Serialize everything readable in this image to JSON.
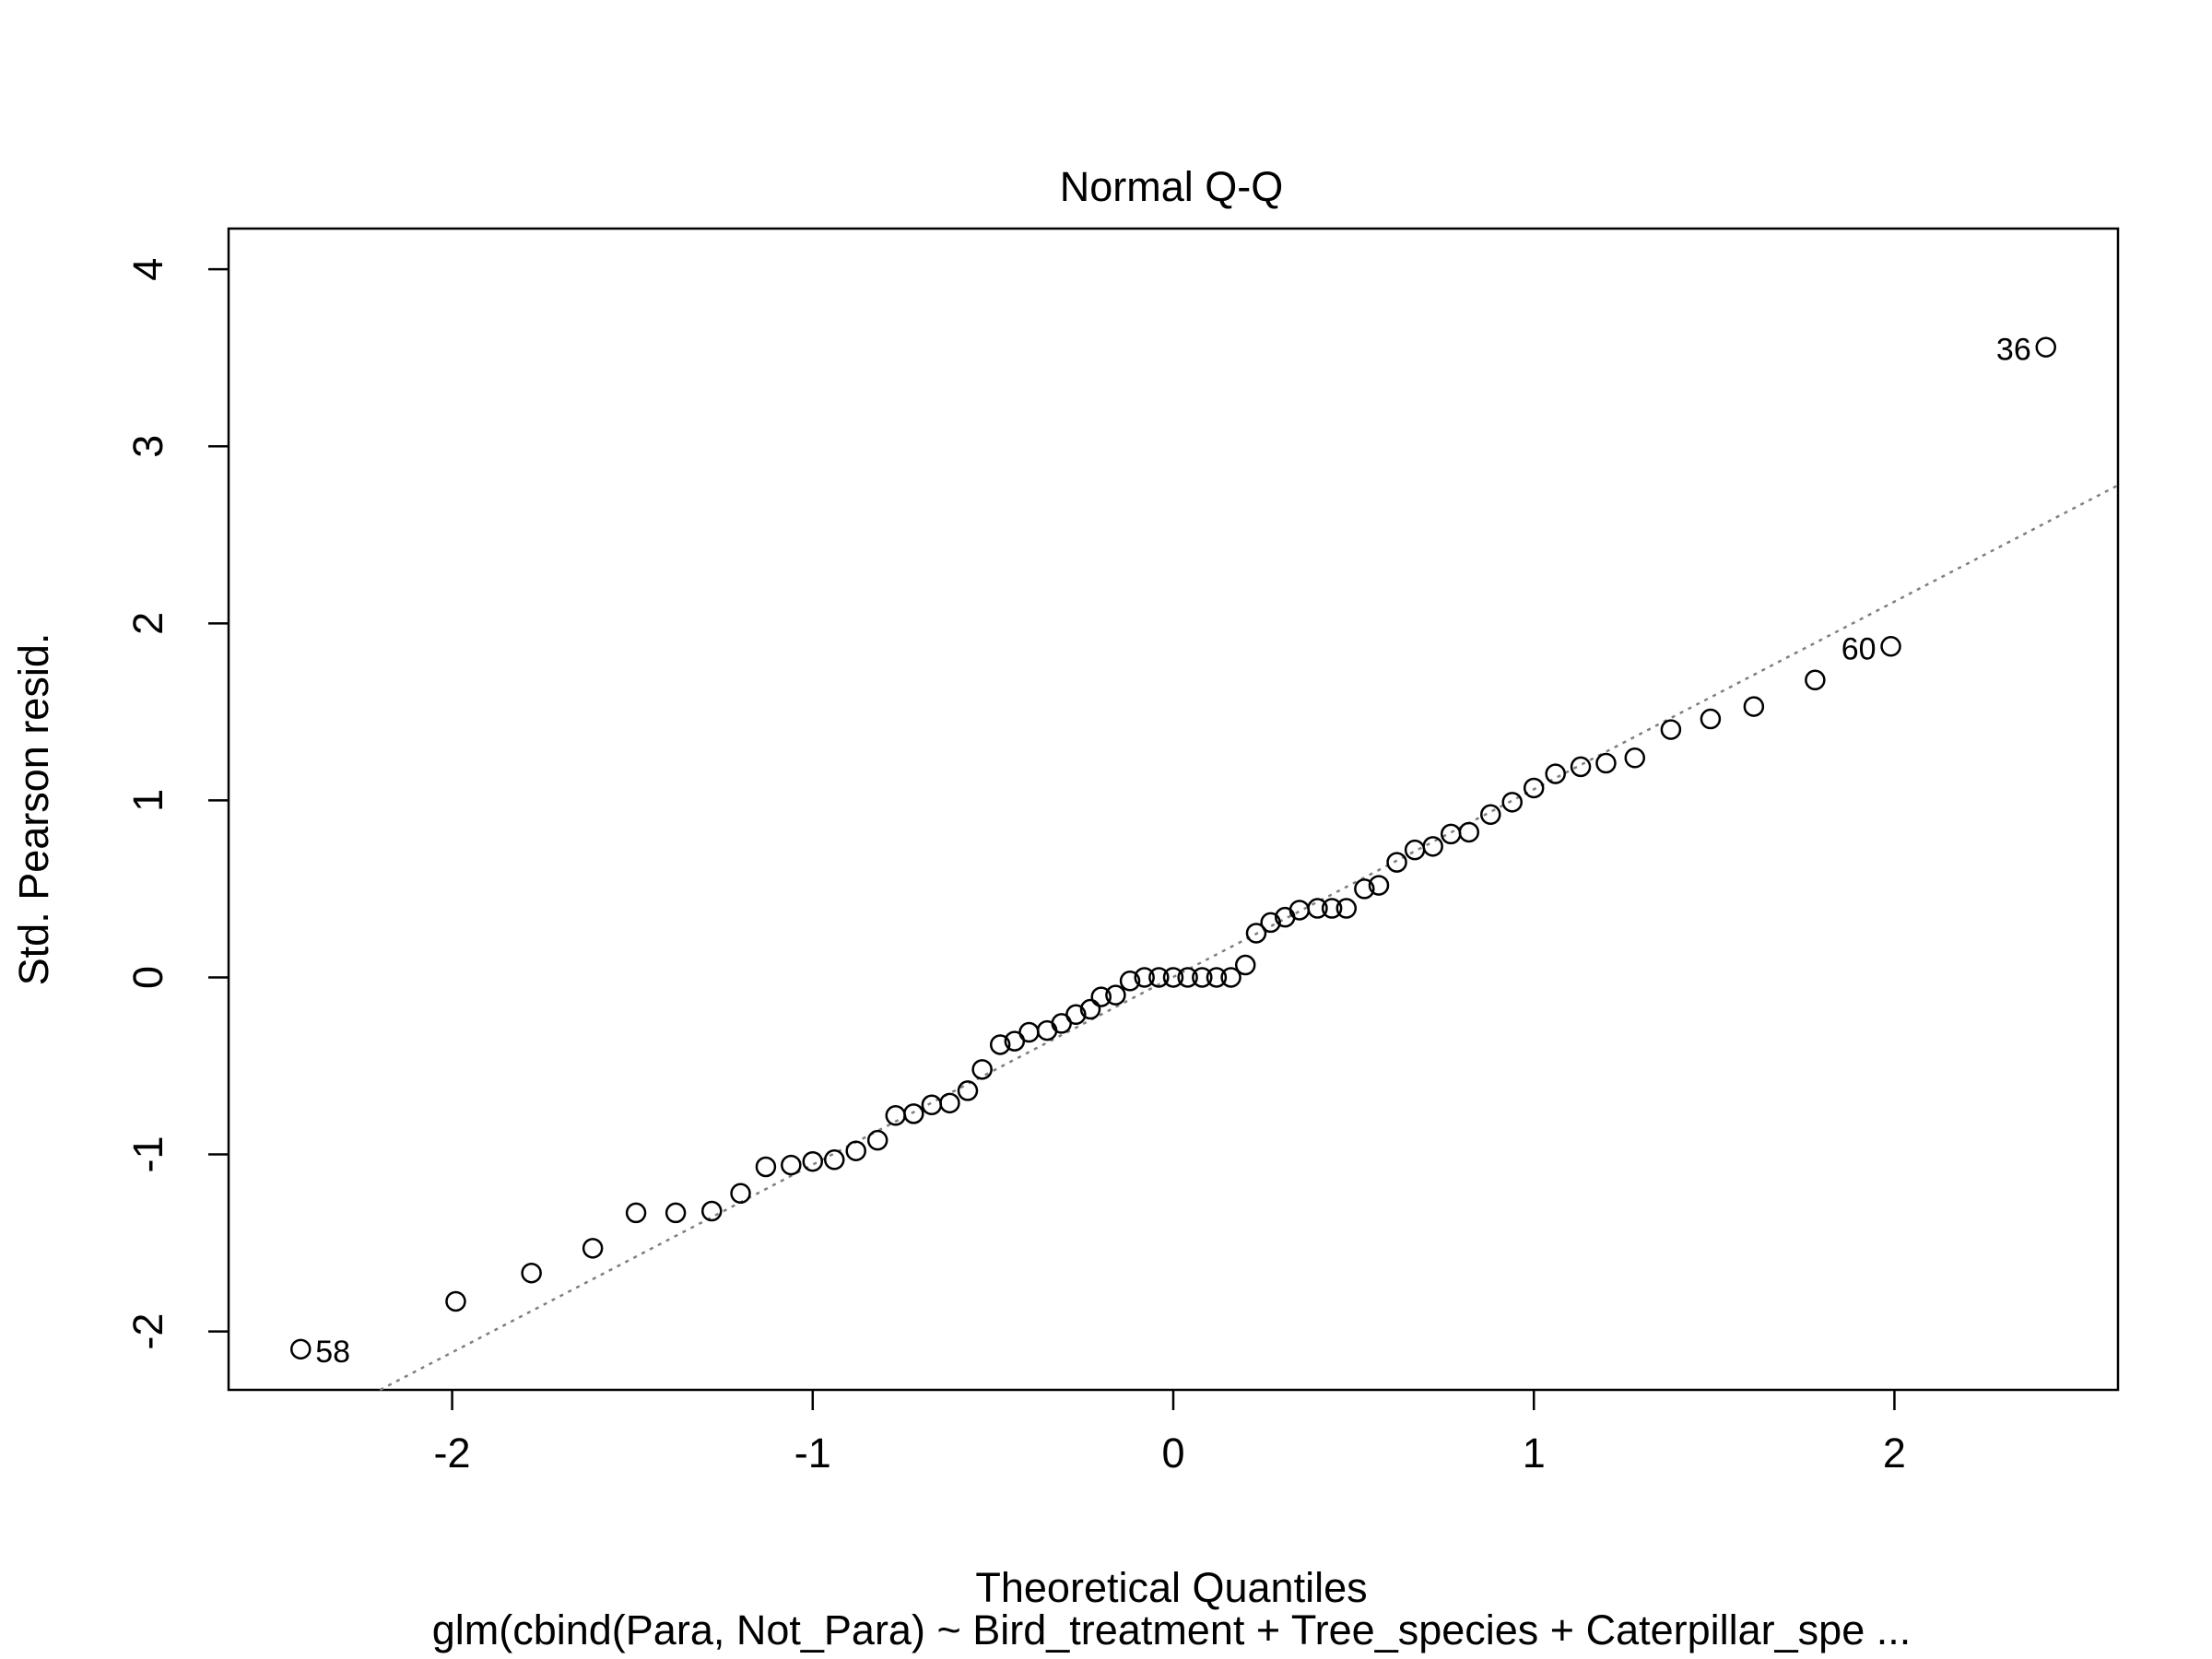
{
  "chart_data": {
    "type": "scatter",
    "title": "Normal Q-Q",
    "xlabel": "Theoretical Quantiles",
    "ylabel": "Std. Pearson resid.",
    "subtitle": "glm(cbind(Para, Not_Para) ~ Bird_treatment + Tree_species + Caterpillar_spe ...",
    "xlim": [
      -2.62,
      2.62
    ],
    "ylim": [
      -2.33,
      4.23
    ],
    "x_ticks": [
      -2,
      -1,
      0,
      1,
      2
    ],
    "x_tick_labels": [
      "-2",
      "-1",
      "0",
      "1",
      "2"
    ],
    "y_ticks": [
      -2,
      -1,
      0,
      1,
      2,
      3,
      4
    ],
    "y_tick_labels": [
      "-2",
      "-1",
      "0",
      "1",
      "2",
      "3",
      "4"
    ],
    "grid": false,
    "reference_line": {
      "style": "dotted",
      "color": "#7f7f7f",
      "points": [
        [
          -2.2,
          -2.33
        ],
        [
          2.62,
          2.78
        ]
      ]
    },
    "points": [
      {
        "x": -2.42,
        "y": -2.1,
        "label": "58"
      },
      {
        "x": -1.99,
        "y": -1.83
      },
      {
        "x": -1.78,
        "y": -1.67
      },
      {
        "x": -1.61,
        "y": -1.53
      },
      {
        "x": -1.49,
        "y": -1.33
      },
      {
        "x": -1.38,
        "y": -1.33
      },
      {
        "x": -1.28,
        "y": -1.32
      },
      {
        "x": -1.2,
        "y": -1.22
      },
      {
        "x": -1.13,
        "y": -1.07
      },
      {
        "x": -1.06,
        "y": -1.06
      },
      {
        "x": -1.0,
        "y": -1.04
      },
      {
        "x": -0.94,
        "y": -1.03
      },
      {
        "x": -0.88,
        "y": -0.98
      },
      {
        "x": -0.82,
        "y": -0.92
      },
      {
        "x": -0.77,
        "y": -0.78
      },
      {
        "x": -0.72,
        "y": -0.77
      },
      {
        "x": -0.67,
        "y": -0.72
      },
      {
        "x": -0.62,
        "y": -0.71
      },
      {
        "x": -0.57,
        "y": -0.64
      },
      {
        "x": -0.53,
        "y": -0.52
      },
      {
        "x": -0.48,
        "y": -0.38
      },
      {
        "x": -0.44,
        "y": -0.36
      },
      {
        "x": -0.4,
        "y": -0.31
      },
      {
        "x": -0.35,
        "y": -0.3
      },
      {
        "x": -0.31,
        "y": -0.26
      },
      {
        "x": -0.27,
        "y": -0.21
      },
      {
        "x": -0.23,
        "y": -0.18
      },
      {
        "x": -0.2,
        "y": -0.11
      },
      {
        "x": -0.16,
        "y": -0.1
      },
      {
        "x": -0.12,
        "y": -0.02
      },
      {
        "x": -0.08,
        "y": 0.0
      },
      {
        "x": -0.04,
        "y": 0.0
      },
      {
        "x": 0.0,
        "y": 0.0
      },
      {
        "x": 0.04,
        "y": 0.0
      },
      {
        "x": 0.08,
        "y": 0.0
      },
      {
        "x": 0.12,
        "y": 0.0
      },
      {
        "x": 0.16,
        "y": 0.0
      },
      {
        "x": 0.2,
        "y": 0.07
      },
      {
        "x": 0.23,
        "y": 0.25
      },
      {
        "x": 0.27,
        "y": 0.31
      },
      {
        "x": 0.31,
        "y": 0.34
      },
      {
        "x": 0.35,
        "y": 0.38
      },
      {
        "x": 0.4,
        "y": 0.39
      },
      {
        "x": 0.44,
        "y": 0.39
      },
      {
        "x": 0.48,
        "y": 0.39
      },
      {
        "x": 0.53,
        "y": 0.5
      },
      {
        "x": 0.57,
        "y": 0.52
      },
      {
        "x": 0.62,
        "y": 0.65
      },
      {
        "x": 0.67,
        "y": 0.72
      },
      {
        "x": 0.72,
        "y": 0.74
      },
      {
        "x": 0.77,
        "y": 0.81
      },
      {
        "x": 0.82,
        "y": 0.82
      },
      {
        "x": 0.88,
        "y": 0.92
      },
      {
        "x": 0.94,
        "y": 0.99
      },
      {
        "x": 1.0,
        "y": 1.07
      },
      {
        "x": 1.06,
        "y": 1.15
      },
      {
        "x": 1.13,
        "y": 1.19
      },
      {
        "x": 1.2,
        "y": 1.21
      },
      {
        "x": 1.28,
        "y": 1.24
      },
      {
        "x": 1.38,
        "y": 1.4
      },
      {
        "x": 1.49,
        "y": 1.46
      },
      {
        "x": 1.61,
        "y": 1.53
      },
      {
        "x": 1.78,
        "y": 1.68
      },
      {
        "x": 1.99,
        "y": 1.87,
        "label": "60"
      },
      {
        "x": 2.42,
        "y": 3.56,
        "label": "36"
      }
    ]
  }
}
